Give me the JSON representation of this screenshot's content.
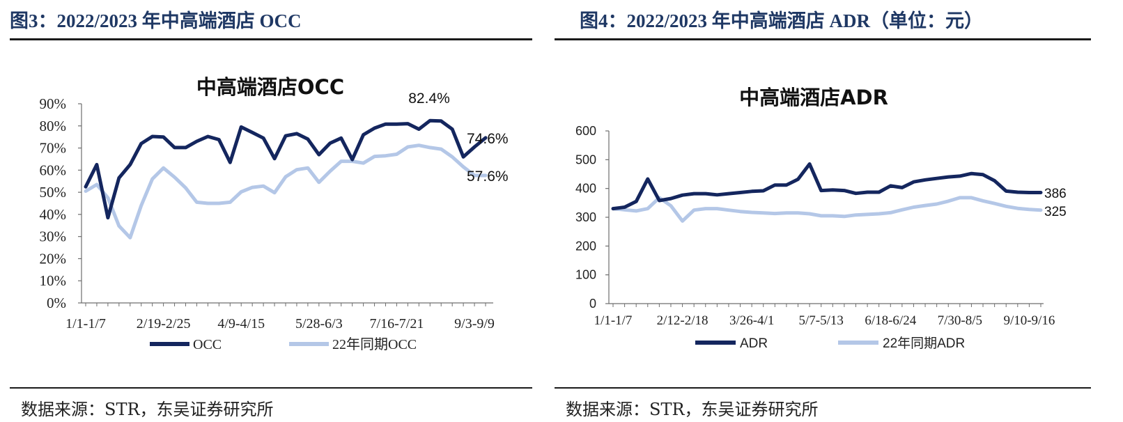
{
  "left_panel": {
    "figure_title": "图3：2022/2023 年中高端酒店 OCC",
    "source": "数据来源：STR，东吴证券研究所"
  },
  "right_panel": {
    "figure_title": "图4：2022/2023 年中高端酒店 ADR（单位：元）",
    "source": "数据来源：STR，东吴证券研究所"
  },
  "colors": {
    "series_2023": "#14265e",
    "series_2022": "#b4c7e7",
    "title_blue": "#1f3864"
  },
  "chart_data": [
    {
      "type": "line",
      "title": "中高端酒店OCC",
      "xlabel": "",
      "ylabel": "",
      "ylim": [
        0,
        90
      ],
      "y_ticks": [
        "0%",
        "10%",
        "20%",
        "30%",
        "40%",
        "50%",
        "60%",
        "70%",
        "80%",
        "90%"
      ],
      "x_tick_labels": [
        "1/1-1/7",
        "2/19-2/25",
        "4/9-4/15",
        "5/28-6/3",
        "7/16-7/21",
        "9/3-9/9"
      ],
      "x_tick_indices": [
        0,
        7,
        14,
        21,
        28,
        35
      ],
      "n_points": 37,
      "series": [
        {
          "name": "OCC",
          "values": [
            52.5,
            62.5,
            38.5,
            56.5,
            62.5,
            72,
            75.2,
            75,
            70.2,
            70.2,
            73,
            75.2,
            73.8,
            63.5,
            79.5,
            77,
            74.5,
            65.2,
            75.5,
            76.5,
            74,
            67,
            72.2,
            74.5,
            64.8,
            76,
            79,
            80.8,
            80.8,
            81,
            78.5,
            82.4,
            82.2,
            78.5,
            66,
            70.5,
            74.6
          ]
        },
        {
          "name": "22年同期OCC",
          "values": [
            50.5,
            53.5,
            47.5,
            34.8,
            29.5,
            44,
            56,
            61,
            56.8,
            52,
            45.5,
            45,
            45,
            45.5,
            50.2,
            52.2,
            52.8,
            49.8,
            57,
            60.2,
            61,
            54.5,
            59.5,
            64,
            64,
            63.2,
            66.2,
            66.5,
            67.2,
            70.5,
            71.2,
            70.2,
            69.5,
            66,
            61.5,
            57.6,
            57.6
          ]
        }
      ],
      "annotations": [
        "82.4%",
        "74.6%",
        "57.6%"
      ],
      "grid": false,
      "legend": "bottom"
    },
    {
      "type": "line",
      "title": "中高端酒店ADR",
      "xlabel": "",
      "ylabel": "",
      "ylim": [
        0,
        600
      ],
      "y_ticks": [
        "0",
        "100",
        "200",
        "300",
        "400",
        "500",
        "600"
      ],
      "x_tick_labels": [
        "1/1-1/7",
        "2/12-2/18",
        "3/26-4/1",
        "5/7-5/13",
        "6/18-6/24",
        "7/30-8/5",
        "9/10-9/16"
      ],
      "x_tick_indices": [
        0,
        6,
        12,
        18,
        24,
        30,
        36
      ],
      "n_points": 38,
      "series": [
        {
          "name": "ADR",
          "values": [
            330,
            335,
            355,
            433,
            358,
            365,
            377,
            382,
            382,
            378,
            382,
            386,
            390,
            392,
            412,
            412,
            432,
            485,
            393,
            395,
            393,
            383,
            387,
            387,
            409,
            403,
            423,
            430,
            435,
            440,
            443,
            452,
            448,
            427,
            391,
            387,
            386,
            386
          ]
        },
        {
          "name": "22年同期ADR",
          "values": [
            330,
            326,
            322,
            330,
            368,
            340,
            287,
            325,
            330,
            330,
            325,
            320,
            317,
            315,
            313,
            315,
            315,
            312,
            305,
            305,
            303,
            308,
            310,
            312,
            316,
            326,
            335,
            341,
            346,
            356,
            368,
            368,
            357,
            348,
            338,
            331,
            327,
            325
          ]
        }
      ],
      "annotations": [
        "386",
        "325"
      ],
      "grid": false,
      "legend": "bottom"
    }
  ]
}
